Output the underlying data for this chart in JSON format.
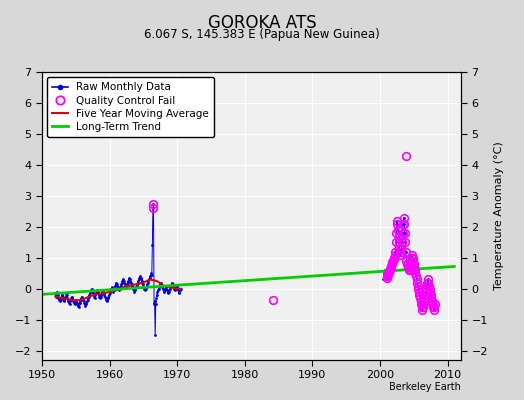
{
  "title": "GOROKA ATS",
  "subtitle": "6.067 S, 145.383 E (Papua New Guinea)",
  "attribution": "Berkeley Earth",
  "ylabel": "Temperature Anomaly (°C)",
  "xlim": [
    1950,
    2012
  ],
  "ylim": [
    -2.3,
    7.0
  ],
  "yticks": [
    -2,
    -1,
    0,
    1,
    2,
    3,
    4,
    5,
    6,
    7
  ],
  "xticks": [
    1950,
    1960,
    1970,
    1980,
    1990,
    2000,
    2010
  ],
  "raw_data": [
    [
      1952.0,
      -0.15
    ],
    [
      1952.083,
      -0.25
    ],
    [
      1952.167,
      -0.1
    ],
    [
      1952.25,
      -0.2
    ],
    [
      1952.333,
      -0.3
    ],
    [
      1952.417,
      -0.2
    ],
    [
      1952.5,
      -0.35
    ],
    [
      1952.583,
      -0.3
    ],
    [
      1952.667,
      -0.4
    ],
    [
      1952.75,
      -0.3
    ],
    [
      1952.833,
      -0.35
    ],
    [
      1952.917,
      -0.2
    ],
    [
      1953.0,
      -0.2
    ],
    [
      1953.083,
      -0.3
    ],
    [
      1953.167,
      -0.25
    ],
    [
      1953.25,
      -0.35
    ],
    [
      1953.333,
      -0.4
    ],
    [
      1953.417,
      -0.3
    ],
    [
      1953.5,
      -0.25
    ],
    [
      1953.583,
      -0.15
    ],
    [
      1953.667,
      -0.2
    ],
    [
      1953.75,
      -0.3
    ],
    [
      1953.833,
      -0.35
    ],
    [
      1953.917,
      -0.4
    ],
    [
      1954.0,
      -0.45
    ],
    [
      1954.083,
      -0.5
    ],
    [
      1954.167,
      -0.4
    ],
    [
      1954.25,
      -0.35
    ],
    [
      1954.333,
      -0.3
    ],
    [
      1954.417,
      -0.25
    ],
    [
      1954.5,
      -0.3
    ],
    [
      1954.583,
      -0.35
    ],
    [
      1954.667,
      -0.4
    ],
    [
      1954.75,
      -0.45
    ],
    [
      1954.833,
      -0.5
    ],
    [
      1954.917,
      -0.4
    ],
    [
      1955.0,
      -0.35
    ],
    [
      1955.083,
      -0.4
    ],
    [
      1955.167,
      -0.45
    ],
    [
      1955.25,
      -0.5
    ],
    [
      1955.333,
      -0.55
    ],
    [
      1955.417,
      -0.6
    ],
    [
      1955.5,
      -0.5
    ],
    [
      1955.583,
      -0.45
    ],
    [
      1955.667,
      -0.4
    ],
    [
      1955.75,
      -0.35
    ],
    [
      1955.833,
      -0.3
    ],
    [
      1955.917,
      -0.25
    ],
    [
      1956.0,
      -0.3
    ],
    [
      1956.083,
      -0.35
    ],
    [
      1956.167,
      -0.4
    ],
    [
      1956.25,
      -0.45
    ],
    [
      1956.333,
      -0.5
    ],
    [
      1956.417,
      -0.55
    ],
    [
      1956.5,
      -0.5
    ],
    [
      1956.583,
      -0.45
    ],
    [
      1956.667,
      -0.4
    ],
    [
      1956.75,
      -0.35
    ],
    [
      1956.833,
      -0.3
    ],
    [
      1956.917,
      -0.25
    ],
    [
      1957.0,
      -0.2
    ],
    [
      1957.083,
      -0.15
    ],
    [
      1957.167,
      -0.1
    ],
    [
      1957.25,
      -0.05
    ],
    [
      1957.333,
      0.0
    ],
    [
      1957.417,
      -0.05
    ],
    [
      1957.5,
      -0.1
    ],
    [
      1957.583,
      -0.15
    ],
    [
      1957.667,
      -0.2
    ],
    [
      1957.75,
      -0.25
    ],
    [
      1957.833,
      -0.3
    ],
    [
      1957.917,
      -0.2
    ],
    [
      1958.0,
      -0.15
    ],
    [
      1958.083,
      -0.1
    ],
    [
      1958.167,
      -0.05
    ],
    [
      1958.25,
      -0.1
    ],
    [
      1958.333,
      -0.15
    ],
    [
      1958.417,
      -0.2
    ],
    [
      1958.5,
      -0.25
    ],
    [
      1958.583,
      -0.3
    ],
    [
      1958.667,
      -0.25
    ],
    [
      1958.75,
      -0.2
    ],
    [
      1958.833,
      -0.15
    ],
    [
      1958.917,
      -0.1
    ],
    [
      1959.0,
      -0.05
    ],
    [
      1959.083,
      -0.1
    ],
    [
      1959.167,
      -0.15
    ],
    [
      1959.25,
      -0.2
    ],
    [
      1959.333,
      -0.25
    ],
    [
      1959.417,
      -0.3
    ],
    [
      1959.5,
      -0.35
    ],
    [
      1959.583,
      -0.4
    ],
    [
      1959.667,
      -0.35
    ],
    [
      1959.75,
      -0.3
    ],
    [
      1959.833,
      -0.25
    ],
    [
      1959.917,
      -0.2
    ],
    [
      1960.0,
      -0.15
    ],
    [
      1960.083,
      -0.1
    ],
    [
      1960.167,
      -0.05
    ],
    [
      1960.25,
      0.0
    ],
    [
      1960.333,
      0.05
    ],
    [
      1960.417,
      0.0
    ],
    [
      1960.5,
      -0.05
    ],
    [
      1960.583,
      -0.1
    ],
    [
      1960.667,
      -0.05
    ],
    [
      1960.75,
      0.0
    ],
    [
      1960.833,
      0.1
    ],
    [
      1960.917,
      0.15
    ],
    [
      1961.0,
      0.2
    ],
    [
      1961.083,
      0.15
    ],
    [
      1961.167,
      0.1
    ],
    [
      1961.25,
      0.05
    ],
    [
      1961.333,
      0.0
    ],
    [
      1961.417,
      -0.05
    ],
    [
      1961.5,
      0.0
    ],
    [
      1961.583,
      0.05
    ],
    [
      1961.667,
      0.1
    ],
    [
      1961.75,
      0.15
    ],
    [
      1961.833,
      0.2
    ],
    [
      1961.917,
      0.25
    ],
    [
      1962.0,
      0.3
    ],
    [
      1962.083,
      0.25
    ],
    [
      1962.167,
      0.2
    ],
    [
      1962.25,
      0.15
    ],
    [
      1962.333,
      0.1
    ],
    [
      1962.417,
      0.05
    ],
    [
      1962.5,
      0.1
    ],
    [
      1962.583,
      0.15
    ],
    [
      1962.667,
      0.2
    ],
    [
      1962.75,
      0.25
    ],
    [
      1962.833,
      0.3
    ],
    [
      1962.917,
      0.35
    ],
    [
      1963.0,
      0.3
    ],
    [
      1963.083,
      0.25
    ],
    [
      1963.167,
      0.2
    ],
    [
      1963.25,
      0.15
    ],
    [
      1963.333,
      0.1
    ],
    [
      1963.417,
      0.05
    ],
    [
      1963.5,
      0.0
    ],
    [
      1963.583,
      -0.05
    ],
    [
      1963.667,
      -0.1
    ],
    [
      1963.75,
      -0.05
    ],
    [
      1963.833,
      0.0
    ],
    [
      1963.917,
      0.05
    ],
    [
      1964.0,
      0.1
    ],
    [
      1964.083,
      0.15
    ],
    [
      1964.167,
      0.2
    ],
    [
      1964.25,
      0.25
    ],
    [
      1964.333,
      0.3
    ],
    [
      1964.417,
      0.35
    ],
    [
      1964.5,
      0.4
    ],
    [
      1964.583,
      0.35
    ],
    [
      1964.667,
      0.3
    ],
    [
      1964.75,
      0.25
    ],
    [
      1964.833,
      0.2
    ],
    [
      1964.917,
      0.15
    ],
    [
      1965.0,
      0.1
    ],
    [
      1965.083,
      0.05
    ],
    [
      1965.167,
      0.0
    ],
    [
      1965.25,
      -0.05
    ],
    [
      1965.333,
      0.0
    ],
    [
      1965.417,
      0.05
    ],
    [
      1965.5,
      0.1
    ],
    [
      1965.583,
      0.15
    ],
    [
      1965.667,
      0.2
    ],
    [
      1965.75,
      0.25
    ],
    [
      1965.833,
      0.3
    ],
    [
      1965.917,
      0.35
    ],
    [
      1966.0,
      0.4
    ],
    [
      1966.083,
      0.45
    ],
    [
      1966.167,
      0.5
    ],
    [
      1966.25,
      0.45
    ],
    [
      1966.333,
      1.4
    ],
    [
      1966.417,
      2.6
    ],
    [
      1966.5,
      2.75
    ],
    [
      1966.583,
      -0.5
    ],
    [
      1966.667,
      -0.4
    ],
    [
      1966.75,
      -1.5
    ],
    [
      1966.833,
      -0.5
    ],
    [
      1966.917,
      -0.3
    ],
    [
      1967.0,
      -0.2
    ],
    [
      1967.083,
      -0.1
    ],
    [
      1967.167,
      -0.05
    ],
    [
      1967.25,
      0.0
    ],
    [
      1967.333,
      0.05
    ],
    [
      1967.417,
      0.1
    ],
    [
      1967.5,
      0.15
    ],
    [
      1967.583,
      0.2
    ],
    [
      1967.667,
      0.15
    ],
    [
      1967.75,
      0.1
    ],
    [
      1967.833,
      0.05
    ],
    [
      1967.917,
      0.0
    ],
    [
      1968.0,
      -0.05
    ],
    [
      1968.083,
      -0.1
    ],
    [
      1968.167,
      -0.05
    ],
    [
      1968.25,
      0.0
    ],
    [
      1968.333,
      0.05
    ],
    [
      1968.417,
      0.0
    ],
    [
      1968.5,
      -0.05
    ],
    [
      1968.583,
      -0.1
    ],
    [
      1968.667,
      -0.15
    ],
    [
      1968.75,
      -0.1
    ],
    [
      1968.833,
      -0.05
    ],
    [
      1968.917,
      0.0
    ],
    [
      1969.0,
      0.05
    ],
    [
      1969.083,
      0.1
    ],
    [
      1969.167,
      0.15
    ],
    [
      1969.25,
      0.2
    ],
    [
      1969.333,
      0.15
    ],
    [
      1969.417,
      0.1
    ],
    [
      1969.5,
      0.05
    ],
    [
      1969.583,
      0.0
    ],
    [
      1969.667,
      -0.05
    ],
    [
      1969.75,
      0.0
    ],
    [
      1969.833,
      0.05
    ],
    [
      1969.917,
      0.1
    ],
    [
      1970.0,
      0.05
    ],
    [
      1970.083,
      0.0
    ],
    [
      1970.167,
      -0.05
    ],
    [
      1970.25,
      -0.1
    ],
    [
      1970.333,
      -0.15
    ],
    [
      1970.417,
      -0.05
    ],
    [
      1970.5,
      0.0
    ],
    [
      2000.5,
      0.3
    ],
    [
      2000.583,
      0.4
    ],
    [
      2000.667,
      0.5
    ],
    [
      2000.75,
      0.6
    ],
    [
      2000.833,
      0.5
    ],
    [
      2000.917,
      0.4
    ],
    [
      2001.0,
      0.35
    ],
    [
      2001.083,
      0.4
    ],
    [
      2001.167,
      0.45
    ],
    [
      2001.25,
      0.5
    ],
    [
      2001.333,
      0.55
    ],
    [
      2001.417,
      0.6
    ],
    [
      2001.5,
      0.65
    ],
    [
      2001.583,
      0.7
    ],
    [
      2001.667,
      0.75
    ],
    [
      2001.75,
      0.8
    ],
    [
      2001.833,
      0.85
    ],
    [
      2001.917,
      0.9
    ],
    [
      2002.0,
      0.95
    ],
    [
      2002.083,
      1.0
    ],
    [
      2002.167,
      1.1
    ],
    [
      2002.25,
      1.2
    ],
    [
      2002.333,
      1.5
    ],
    [
      2002.417,
      1.8
    ],
    [
      2002.5,
      2.2
    ],
    [
      2002.583,
      2.1
    ],
    [
      2002.667,
      1.9
    ],
    [
      2002.75,
      1.7
    ],
    [
      2002.833,
      1.5
    ],
    [
      2002.917,
      1.3
    ],
    [
      2003.0,
      1.1
    ],
    [
      2003.083,
      1.2
    ],
    [
      2003.167,
      1.3
    ],
    [
      2003.25,
      1.5
    ],
    [
      2003.333,
      1.8
    ],
    [
      2003.417,
      2.1
    ],
    [
      2003.5,
      2.3
    ],
    [
      2003.583,
      2.1
    ],
    [
      2003.667,
      1.8
    ],
    [
      2003.75,
      1.5
    ],
    [
      2003.833,
      1.2
    ],
    [
      2003.917,
      0.9
    ],
    [
      2004.0,
      0.8
    ],
    [
      2004.083,
      0.75
    ],
    [
      2004.167,
      0.7
    ],
    [
      2004.25,
      0.65
    ],
    [
      2004.333,
      0.6
    ],
    [
      2004.417,
      0.7
    ],
    [
      2004.5,
      0.8
    ],
    [
      2004.583,
      0.9
    ],
    [
      2004.667,
      1.0
    ],
    [
      2004.75,
      1.1
    ],
    [
      2004.833,
      1.0
    ],
    [
      2004.917,
      0.9
    ],
    [
      2005.0,
      0.8
    ],
    [
      2005.083,
      0.7
    ],
    [
      2005.167,
      0.6
    ],
    [
      2005.25,
      0.5
    ],
    [
      2005.333,
      0.4
    ],
    [
      2005.417,
      0.3
    ],
    [
      2005.5,
      0.2
    ],
    [
      2005.583,
      0.1
    ],
    [
      2005.667,
      0.0
    ],
    [
      2005.75,
      -0.1
    ],
    [
      2005.833,
      -0.2
    ],
    [
      2005.917,
      -0.3
    ],
    [
      2006.0,
      -0.4
    ],
    [
      2006.083,
      -0.5
    ],
    [
      2006.167,
      -0.6
    ],
    [
      2006.25,
      -0.7
    ],
    [
      2006.333,
      -0.6
    ],
    [
      2006.417,
      -0.5
    ],
    [
      2006.5,
      -0.4
    ],
    [
      2006.583,
      -0.3
    ],
    [
      2006.667,
      -0.2
    ],
    [
      2006.75,
      -0.1
    ],
    [
      2006.833,
      0.0
    ],
    [
      2006.917,
      0.1
    ],
    [
      2007.0,
      0.2
    ],
    [
      2007.083,
      0.3
    ],
    [
      2007.167,
      0.2
    ],
    [
      2007.25,
      0.1
    ],
    [
      2007.333,
      0.0
    ],
    [
      2007.417,
      -0.1
    ],
    [
      2007.5,
      -0.2
    ],
    [
      2007.583,
      -0.3
    ],
    [
      2007.667,
      -0.4
    ],
    [
      2007.75,
      -0.5
    ],
    [
      2007.833,
      -0.6
    ],
    [
      2007.917,
      -0.7
    ],
    [
      2008.0,
      -0.6
    ],
    [
      2008.083,
      -0.5
    ],
    [
      2008.167,
      -0.4
    ]
  ],
  "qc_fail": [
    [
      1966.417,
      2.6
    ],
    [
      1966.5,
      2.75
    ],
    [
      1984.25,
      -0.35
    ],
    [
      2001.0,
      0.35
    ],
    [
      2001.083,
      0.4
    ],
    [
      2001.167,
      0.45
    ],
    [
      2001.25,
      0.5
    ],
    [
      2001.333,
      0.55
    ],
    [
      2001.417,
      0.6
    ],
    [
      2001.5,
      0.65
    ],
    [
      2001.583,
      0.7
    ],
    [
      2001.667,
      0.75
    ],
    [
      2001.75,
      0.8
    ],
    [
      2001.833,
      0.85
    ],
    [
      2001.917,
      0.9
    ],
    [
      2002.0,
      0.95
    ],
    [
      2002.083,
      1.0
    ],
    [
      2002.167,
      1.1
    ],
    [
      2002.25,
      1.2
    ],
    [
      2002.333,
      1.5
    ],
    [
      2002.417,
      1.8
    ],
    [
      2002.5,
      2.2
    ],
    [
      2002.583,
      2.1
    ],
    [
      2002.667,
      1.9
    ],
    [
      2002.75,
      1.7
    ],
    [
      2002.833,
      1.5
    ],
    [
      2002.917,
      1.3
    ],
    [
      2003.0,
      1.1
    ],
    [
      2003.083,
      1.2
    ],
    [
      2003.167,
      1.3
    ],
    [
      2003.25,
      1.5
    ],
    [
      2003.333,
      1.8
    ],
    [
      2003.417,
      2.1
    ],
    [
      2003.5,
      2.3
    ],
    [
      2003.583,
      2.1
    ],
    [
      2003.667,
      1.8
    ],
    [
      2003.75,
      1.5
    ],
    [
      2003.833,
      1.2
    ],
    [
      2003.917,
      0.9
    ],
    [
      2004.0,
      0.8
    ],
    [
      2004.083,
      0.75
    ],
    [
      2004.167,
      0.7
    ],
    [
      2004.25,
      0.65
    ],
    [
      2004.333,
      0.6
    ],
    [
      2004.417,
      0.7
    ],
    [
      2004.5,
      0.8
    ],
    [
      2004.583,
      0.9
    ],
    [
      2004.667,
      1.0
    ],
    [
      2004.75,
      1.1
    ],
    [
      2004.833,
      1.0
    ],
    [
      2004.917,
      0.9
    ],
    [
      2005.0,
      0.8
    ],
    [
      2005.083,
      0.7
    ],
    [
      2005.167,
      0.6
    ],
    [
      2005.25,
      0.5
    ],
    [
      2005.333,
      0.4
    ],
    [
      2005.417,
      0.3
    ],
    [
      2005.5,
      0.2
    ],
    [
      2005.583,
      0.1
    ],
    [
      2005.667,
      0.0
    ],
    [
      2005.75,
      -0.1
    ],
    [
      2005.833,
      -0.2
    ],
    [
      2005.917,
      -0.3
    ],
    [
      2006.0,
      -0.4
    ],
    [
      2006.083,
      -0.5
    ],
    [
      2006.167,
      -0.6
    ],
    [
      2006.25,
      -0.7
    ],
    [
      2006.333,
      -0.6
    ],
    [
      2006.417,
      -0.5
    ],
    [
      2006.5,
      -0.4
    ],
    [
      2006.583,
      -0.3
    ],
    [
      2006.667,
      -0.2
    ],
    [
      2006.75,
      -0.1
    ],
    [
      2006.833,
      0.0
    ],
    [
      2006.917,
      0.1
    ],
    [
      2007.0,
      0.2
    ],
    [
      2007.083,
      0.3
    ],
    [
      2007.167,
      0.2
    ],
    [
      2007.25,
      0.1
    ],
    [
      2007.333,
      0.0
    ],
    [
      2007.417,
      -0.1
    ],
    [
      2007.5,
      -0.2
    ],
    [
      2007.583,
      -0.3
    ],
    [
      2007.667,
      -0.4
    ],
    [
      2007.75,
      -0.5
    ],
    [
      2007.833,
      -0.6
    ],
    [
      2007.917,
      -0.7
    ],
    [
      2008.0,
      -0.6
    ],
    [
      2008.083,
      -0.5
    ],
    [
      2003.917,
      4.3
    ]
  ],
  "moving_avg": [
    [
      1952.0,
      -0.25
    ],
    [
      1953.0,
      -0.3
    ],
    [
      1954.0,
      -0.35
    ],
    [
      1955.0,
      -0.38
    ],
    [
      1956.0,
      -0.35
    ],
    [
      1957.0,
      -0.25
    ],
    [
      1958.0,
      -0.18
    ],
    [
      1959.0,
      -0.15
    ],
    [
      1960.0,
      -0.1
    ],
    [
      1961.0,
      -0.05
    ],
    [
      1962.0,
      0.05
    ],
    [
      1963.0,
      0.1
    ],
    [
      1964.0,
      0.15
    ],
    [
      1965.0,
      0.2
    ],
    [
      1966.0,
      0.3
    ],
    [
      1967.0,
      0.25
    ],
    [
      1968.0,
      0.1
    ],
    [
      1969.0,
      0.05
    ],
    [
      1970.0,
      0.0
    ],
    [
      1970.5,
      0.0
    ]
  ],
  "trend_line": [
    [
      1950,
      -0.18
    ],
    [
      2011,
      0.72
    ]
  ],
  "colors": {
    "raw": "#0000dd",
    "qc": "#ff00ff",
    "moving_avg": "#dd0000",
    "trend": "#00cc00",
    "grid": "#cccccc",
    "plot_bg": "#f0f0f0",
    "fig_bg": "#d8d8d8"
  }
}
